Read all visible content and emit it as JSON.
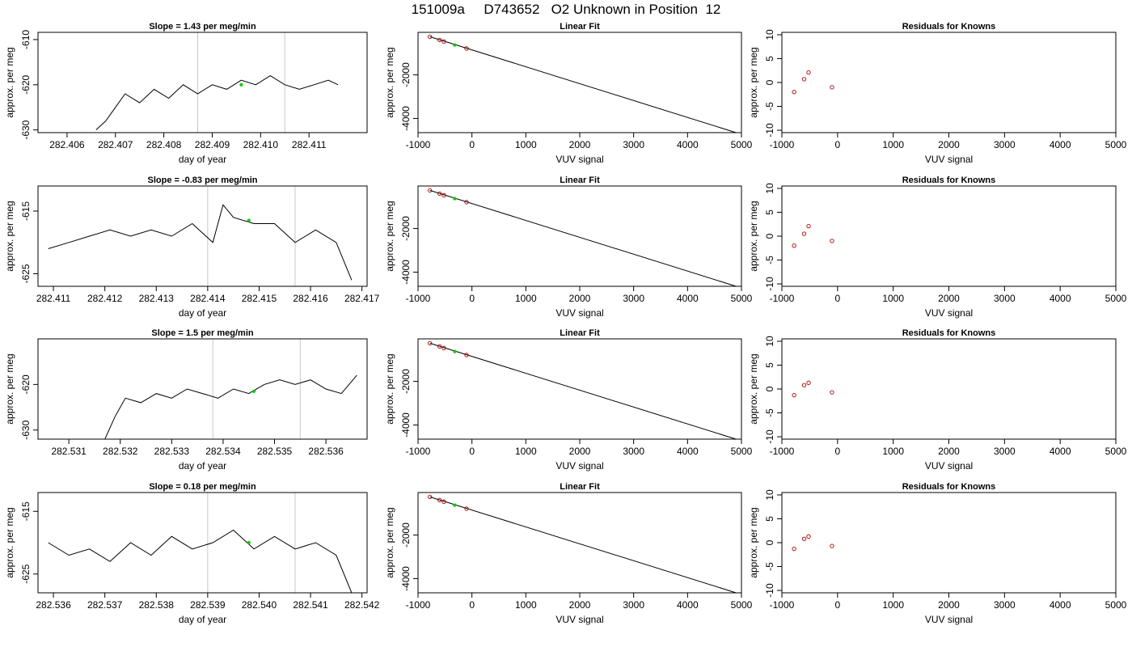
{
  "page": {
    "title": "151009a     D743652   O2 Unknown in Position  12"
  },
  "chart_data": [
    {
      "type": "line",
      "title": "Slope =  1.43  per meg/min",
      "xlabel": "day of year",
      "ylabel": "approx. per meg",
      "xlim": [
        282.4054,
        282.4122
      ],
      "ylim": [
        -630.6,
        -608.4
      ],
      "xticks": [
        "282.406",
        "282.407",
        "282.408",
        "282.409",
        "282.410",
        "282.411"
      ],
      "xtick_values": [
        282.406,
        282.407,
        282.408,
        282.409,
        282.41,
        282.411
      ],
      "yticks": [
        "-630",
        "-620",
        "-610"
      ],
      "ytick_values": [
        -630,
        -620,
        -610
      ],
      "vlines": [
        282.4087,
        282.4105
      ],
      "series": [
        {
          "color": "#000000",
          "x": [
            282.4066,
            282.4068,
            282.407,
            282.4072,
            282.4075,
            282.4078,
            282.4081,
            282.4084,
            282.4087,
            282.409,
            282.4093,
            282.4096,
            282.4099,
            282.4102,
            282.4105,
            282.4108,
            282.4111,
            282.4114,
            282.4116
          ],
          "y": [
            -630,
            -628,
            -625,
            -622,
            -624,
            -621,
            -623,
            -620,
            -622,
            -620,
            -621,
            -619,
            -620,
            -618,
            -620,
            -621,
            -620,
            -619,
            -620
          ]
        }
      ],
      "markers": [
        {
          "color": "#00cc00",
          "x": 282.4096,
          "y": -620
        }
      ]
    },
    {
      "type": "scatter",
      "title": "Linear Fit",
      "xlabel": "VUV signal",
      "ylabel": "approx. per meg",
      "xlim": [
        -1000,
        5000
      ],
      "ylim": [
        -4650,
        -50
      ],
      "xticks": [
        "-1000",
        "0",
        "1000",
        "2000",
        "3000",
        "4000",
        "5000"
      ],
      "xtick_values": [
        -1000,
        0,
        1000,
        2000,
        3000,
        4000,
        5000
      ],
      "yticks": [
        "-4000",
        "-2000"
      ],
      "ytick_values": [
        -4000,
        -2000
      ],
      "fit_line": {
        "x": [
          -780,
          4900
        ],
        "y": [
          -250,
          -4650
        ]
      },
      "series": [
        {
          "color": "#aa0000",
          "x": [
            -780,
            -600,
            -520,
            -100
          ],
          "y": [
            -250,
            -400,
            -470,
            -790
          ]
        }
      ],
      "markers": [
        {
          "color": "#00cc00",
          "x": -320,
          "y": -630
        }
      ]
    },
    {
      "type": "scatter",
      "title": "Residuals for Knowns",
      "xlabel": "VUV signal",
      "ylabel": "approx. per meg",
      "xlim": [
        -1000,
        5000
      ],
      "ylim": [
        -10.5,
        10.5
      ],
      "xticks": [
        "-1000",
        "0",
        "1000",
        "2000",
        "3000",
        "4000",
        "5000"
      ],
      "xtick_values": [
        -1000,
        0,
        1000,
        2000,
        3000,
        4000,
        5000
      ],
      "yticks": [
        "-10",
        "-5",
        "0",
        "5",
        "10"
      ],
      "ytick_values": [
        -10,
        -5,
        0,
        5,
        10
      ],
      "series": [
        {
          "color": "#aa0000",
          "x": [
            -780,
            -600,
            -520,
            -100
          ],
          "y": [
            -2,
            0.7,
            2.1,
            -1
          ]
        }
      ]
    },
    {
      "type": "line",
      "title": "Slope =  -0.83  per meg/min",
      "xlabel": "day of year",
      "ylabel": "approx. per meg",
      "xlim": [
        282.4107,
        282.4171
      ],
      "ylim": [
        -627.0,
        -611.0
      ],
      "xticks": [
        "282.411",
        "282.412",
        "282.413",
        "282.414",
        "282.415",
        "282.416",
        "282.417"
      ],
      "xtick_values": [
        282.411,
        282.412,
        282.413,
        282.414,
        282.415,
        282.416,
        282.417
      ],
      "yticks": [
        "-625",
        "-615"
      ],
      "ytick_values": [
        -625,
        -615
      ],
      "vlines": [
        282.414,
        282.4157
      ],
      "series": [
        {
          "color": "#000000",
          "x": [
            282.4109,
            282.4113,
            282.4117,
            282.4121,
            282.4125,
            282.4129,
            282.4133,
            282.4137,
            282.4141,
            282.4143,
            282.4145,
            282.4149,
            282.4153,
            282.4157,
            282.4161,
            282.4165,
            282.4168
          ],
          "y": [
            -621,
            -620,
            -619,
            -618,
            -619,
            -618,
            -619,
            -617,
            -620,
            -614,
            -616,
            -617,
            -617,
            -620,
            -618,
            -620,
            -626
          ]
        }
      ],
      "markers": [
        {
          "color": "#00cc00",
          "x": 282.4148,
          "y": -616.5
        }
      ]
    },
    {
      "type": "scatter",
      "title": "Linear Fit",
      "xlabel": "VUV signal",
      "ylabel": "approx. per meg",
      "xlim": [
        -1000,
        5000
      ],
      "ylim": [
        -4650,
        -50
      ],
      "xticks": [
        "-1000",
        "0",
        "1000",
        "2000",
        "3000",
        "4000",
        "5000"
      ],
      "xtick_values": [
        -1000,
        0,
        1000,
        2000,
        3000,
        4000,
        5000
      ],
      "yticks": [
        "-4000",
        "-2000"
      ],
      "ytick_values": [
        -4000,
        -2000
      ],
      "fit_line": {
        "x": [
          -780,
          4900
        ],
        "y": [
          -250,
          -4650
        ]
      },
      "series": [
        {
          "color": "#aa0000",
          "x": [
            -780,
            -600,
            -520,
            -100
          ],
          "y": [
            -250,
            -400,
            -470,
            -790
          ]
        }
      ],
      "markers": [
        {
          "color": "#00cc00",
          "x": -320,
          "y": -630
        }
      ]
    },
    {
      "type": "scatter",
      "title": "Residuals for Knowns",
      "xlabel": "VUV signal",
      "ylabel": "approx. per meg",
      "xlim": [
        -1000,
        5000
      ],
      "ylim": [
        -10.5,
        10.5
      ],
      "xticks": [
        "-1000",
        "0",
        "1000",
        "2000",
        "3000",
        "4000",
        "5000"
      ],
      "xtick_values": [
        -1000,
        0,
        1000,
        2000,
        3000,
        4000,
        5000
      ],
      "yticks": [
        "-10",
        "-5",
        "0",
        "5",
        "10"
      ],
      "ytick_values": [
        -10,
        -5,
        0,
        5,
        10
      ],
      "series": [
        {
          "color": "#aa0000",
          "x": [
            -780,
            -600,
            -520,
            -100
          ],
          "y": [
            -2,
            0.5,
            2.1,
            -1
          ]
        }
      ]
    },
    {
      "type": "line",
      "title": "Slope =  1.5  per meg/min",
      "xlabel": "day of year",
      "ylabel": "approx. per meg",
      "xlim": [
        282.5304,
        282.5368
      ],
      "ylim": [
        -632.0,
        -610.0
      ],
      "xticks": [
        "282.531",
        "282.532",
        "282.533",
        "282.534",
        "282.535",
        "282.536"
      ],
      "xtick_values": [
        282.531,
        282.532,
        282.533,
        282.534,
        282.535,
        282.536
      ],
      "yticks": [
        "-630",
        "-620"
      ],
      "ytick_values": [
        -630,
        -620
      ],
      "vlines": [
        282.5338,
        282.5355
      ],
      "series": [
        {
          "color": "#000000",
          "x": [
            282.5317,
            282.5319,
            282.5321,
            282.5324,
            282.5327,
            282.533,
            282.5333,
            282.5336,
            282.5339,
            282.5342,
            282.5345,
            282.5348,
            282.5351,
            282.5354,
            282.5357,
            282.536,
            282.5363,
            282.5366
          ],
          "y": [
            -632,
            -627,
            -623,
            -624,
            -622,
            -623,
            -621,
            -622,
            -623,
            -621,
            -622,
            -620,
            -619,
            -620,
            -619,
            -621,
            -622,
            -618
          ]
        }
      ],
      "markers": [
        {
          "color": "#00cc00",
          "x": 282.5346,
          "y": -621.5
        }
      ]
    },
    {
      "type": "scatter",
      "title": "Linear Fit",
      "xlabel": "VUV signal",
      "ylabel": "approx. per meg",
      "xlim": [
        -1000,
        5000
      ],
      "ylim": [
        -4650,
        -50
      ],
      "xticks": [
        "-1000",
        "0",
        "1000",
        "2000",
        "3000",
        "4000",
        "5000"
      ],
      "xtick_values": [
        -1000,
        0,
        1000,
        2000,
        3000,
        4000,
        5000
      ],
      "yticks": [
        "-4000",
        "-2000"
      ],
      "ytick_values": [
        -4000,
        -2000
      ],
      "fit_line": {
        "x": [
          -780,
          4900
        ],
        "y": [
          -250,
          -4650
        ]
      },
      "series": [
        {
          "color": "#aa0000",
          "x": [
            -780,
            -600,
            -520,
            -100
          ],
          "y": [
            -250,
            -400,
            -470,
            -790
          ]
        }
      ],
      "markers": [
        {
          "color": "#00cc00",
          "x": -320,
          "y": -630
        }
      ]
    },
    {
      "type": "scatter",
      "title": "Residuals for Knowns",
      "xlabel": "VUV signal",
      "ylabel": "approx. per meg",
      "xlim": [
        -1000,
        5000
      ],
      "ylim": [
        -10.5,
        10.5
      ],
      "xticks": [
        "-1000",
        "0",
        "1000",
        "2000",
        "3000",
        "4000",
        "5000"
      ],
      "xtick_values": [
        -1000,
        0,
        1000,
        2000,
        3000,
        4000,
        5000
      ],
      "yticks": [
        "-10",
        "-5",
        "0",
        "5",
        "10"
      ],
      "ytick_values": [
        -10,
        -5,
        0,
        5,
        10
      ],
      "series": [
        {
          "color": "#aa0000",
          "x": [
            -780,
            -600,
            -520,
            -100
          ],
          "y": [
            -1.3,
            0.8,
            1.3,
            -0.7
          ]
        }
      ]
    },
    {
      "type": "line",
      "title": "Slope =  0.18  per meg/min",
      "xlabel": "day of year",
      "ylabel": "approx. per meg",
      "xlim": [
        282.5357,
        282.5421
      ],
      "ylim": [
        -628.0,
        -612.0
      ],
      "xticks": [
        "282.536",
        "282.537",
        "282.538",
        "282.539",
        "282.540",
        "282.541",
        "282.542"
      ],
      "xtick_values": [
        282.536,
        282.537,
        282.538,
        282.539,
        282.54,
        282.541,
        282.542
      ],
      "yticks": [
        "-625",
        "-615"
      ],
      "ytick_values": [
        -625,
        -615
      ],
      "vlines": [
        282.539,
        282.5407
      ],
      "series": [
        {
          "color": "#000000",
          "x": [
            282.5359,
            282.5363,
            282.5367,
            282.5371,
            282.5375,
            282.5379,
            282.5383,
            282.5387,
            282.5391,
            282.5395,
            282.5399,
            282.5403,
            282.5407,
            282.5411,
            282.5415,
            282.5418
          ],
          "y": [
            -620,
            -622,
            -621,
            -623,
            -620,
            -622,
            -619,
            -621,
            -620,
            -618,
            -621,
            -619,
            -621,
            -620,
            -622,
            -628
          ]
        }
      ],
      "markers": [
        {
          "color": "#00cc00",
          "x": 282.5398,
          "y": -620
        }
      ]
    },
    {
      "type": "scatter",
      "title": "Linear Fit",
      "xlabel": "VUV signal",
      "ylabel": "approx. per meg",
      "xlim": [
        -1000,
        5000
      ],
      "ylim": [
        -4650,
        -50
      ],
      "xticks": [
        "-1000",
        "0",
        "1000",
        "2000",
        "3000",
        "4000",
        "5000"
      ],
      "xtick_values": [
        -1000,
        0,
        1000,
        2000,
        3000,
        4000,
        5000
      ],
      "yticks": [
        "-4000",
        "-2000"
      ],
      "ytick_values": [
        -4000,
        -2000
      ],
      "fit_line": {
        "x": [
          -780,
          4900
        ],
        "y": [
          -250,
          -4650
        ]
      },
      "series": [
        {
          "color": "#aa0000",
          "x": [
            -780,
            -600,
            -520,
            -100
          ],
          "y": [
            -250,
            -400,
            -470,
            -790
          ]
        }
      ],
      "markers": [
        {
          "color": "#00cc00",
          "x": -320,
          "y": -630
        }
      ]
    },
    {
      "type": "scatter",
      "title": "Residuals for Knowns",
      "xlabel": "VUV signal",
      "ylabel": "approx. per meg",
      "xlim": [
        -1000,
        5000
      ],
      "ylim": [
        -10.5,
        10.5
      ],
      "xticks": [
        "-1000",
        "0",
        "1000",
        "2000",
        "3000",
        "4000",
        "5000"
      ],
      "xtick_values": [
        -1000,
        0,
        1000,
        2000,
        3000,
        4000,
        5000
      ],
      "yticks": [
        "-10",
        "-5",
        "0",
        "5",
        "10"
      ],
      "ytick_values": [
        -10,
        -5,
        0,
        5,
        10
      ],
      "series": [
        {
          "color": "#aa0000",
          "x": [
            -780,
            -600,
            -520,
            -100
          ],
          "y": [
            -1.3,
            0.8,
            1.3,
            -0.7
          ]
        }
      ]
    }
  ]
}
